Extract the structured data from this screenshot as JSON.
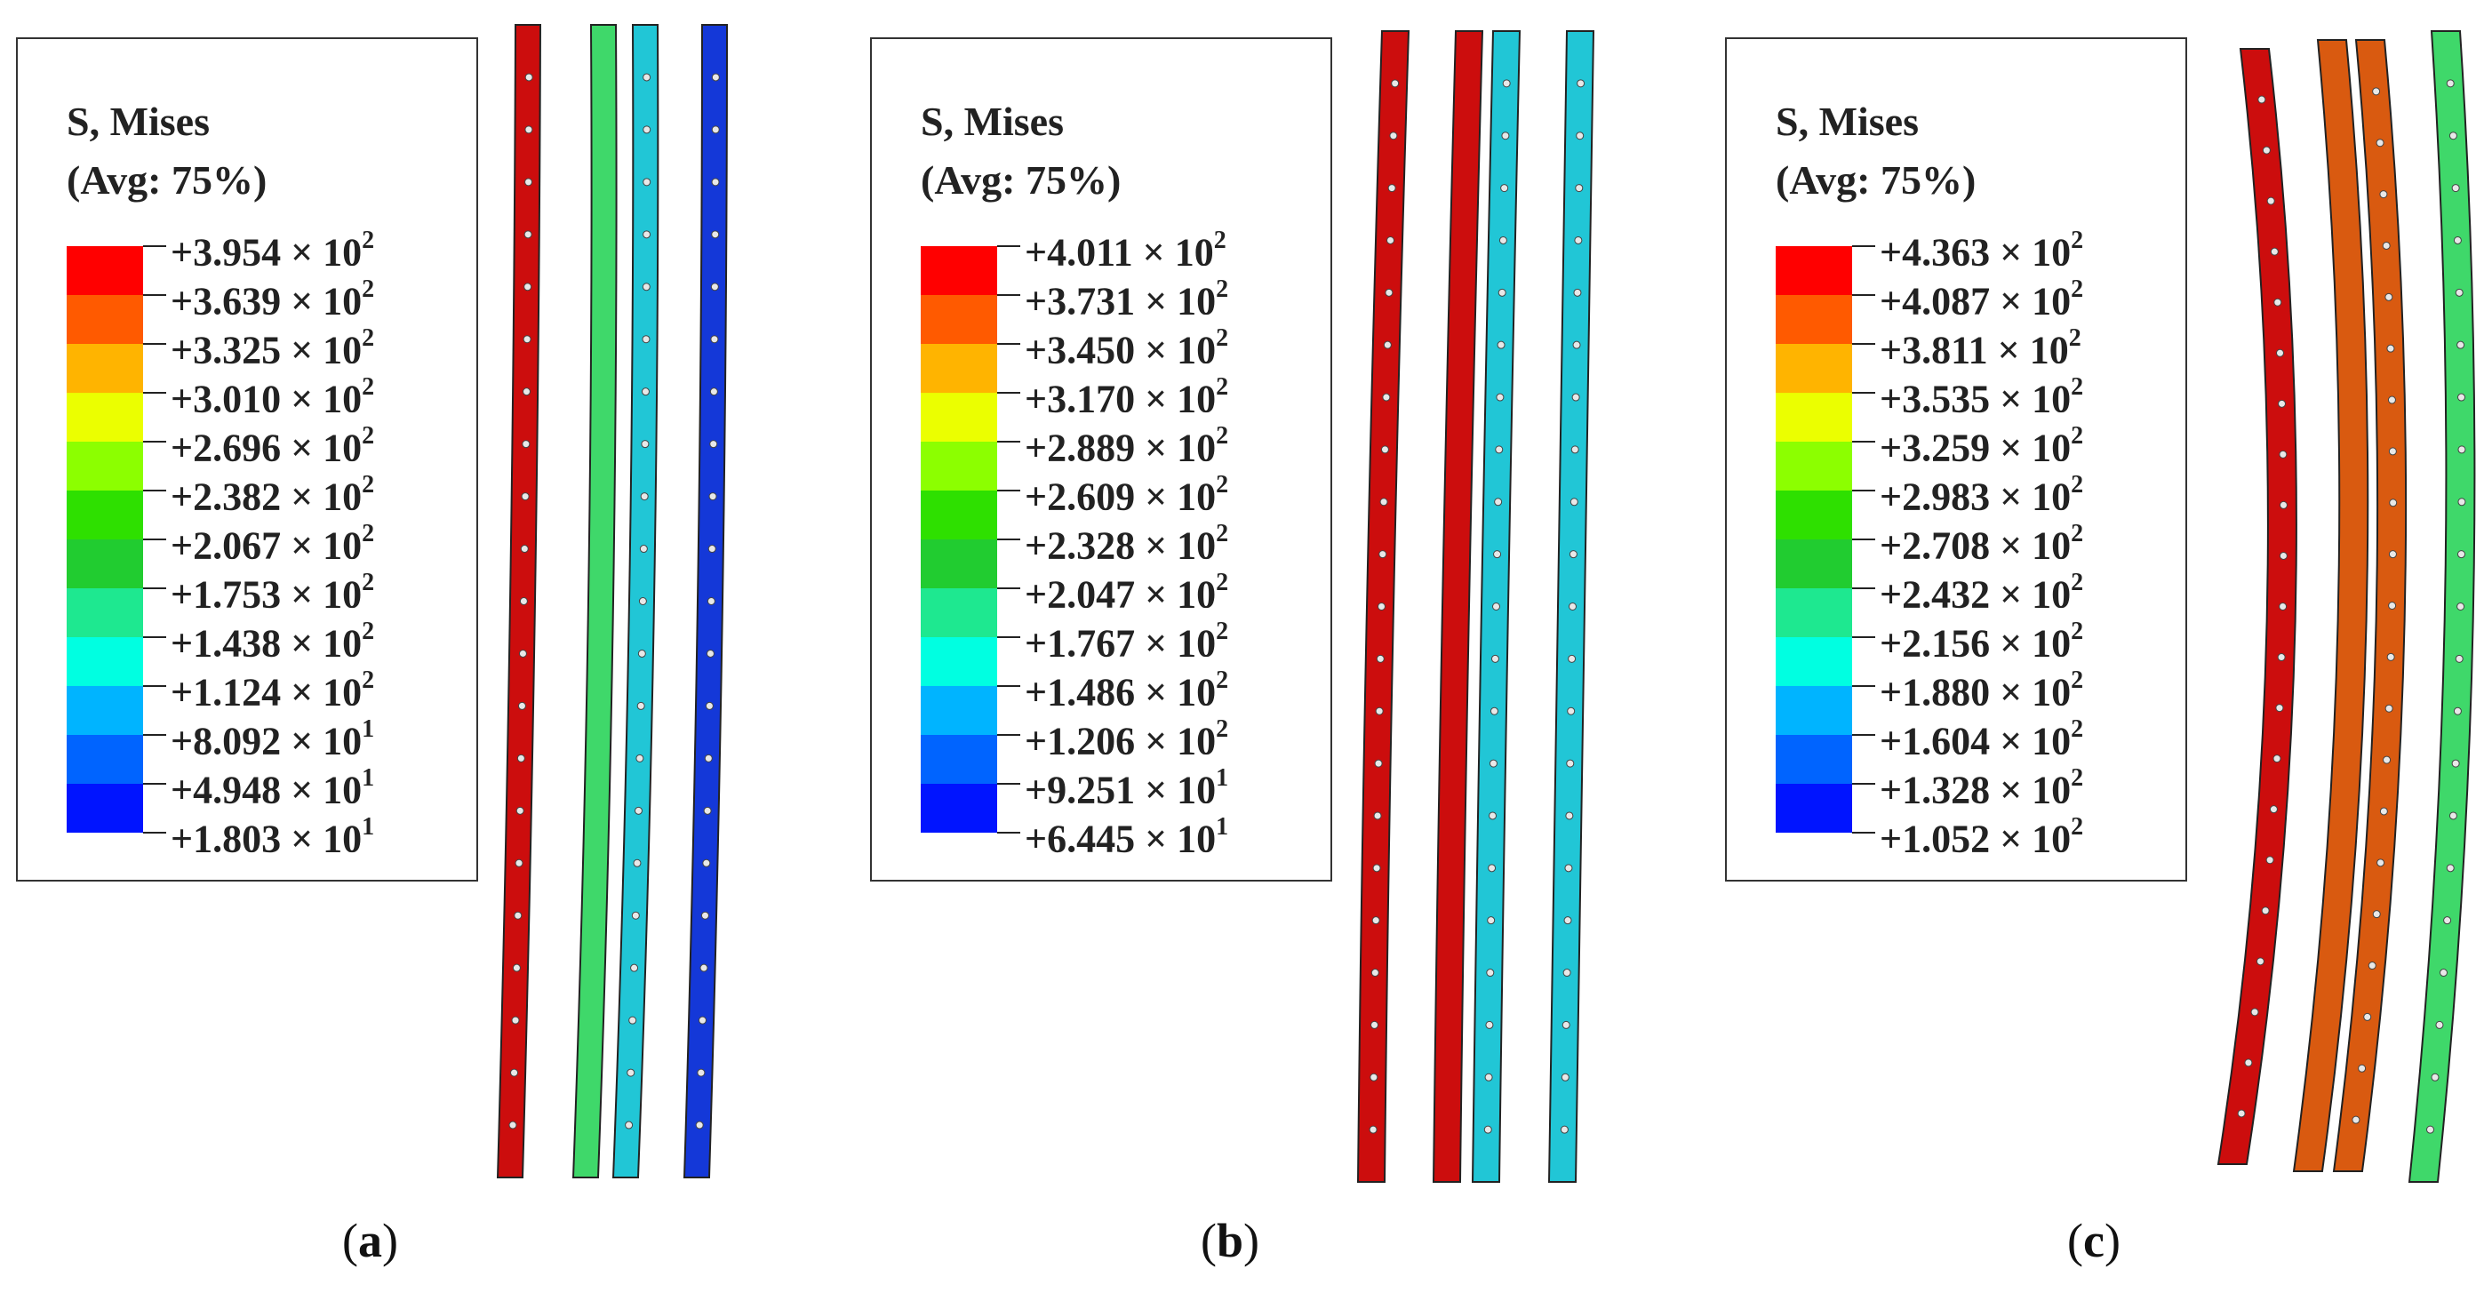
{
  "panels": [
    {
      "caption_letter": "a",
      "legend_title_line1": "S, Mises",
      "legend_title_line2": "(Avg: 75%)",
      "values": [
        "+3.954 × 10",
        "+3.639 × 10",
        "+3.325 × 10",
        "+3.010 × 10",
        "+2.696 × 10",
        "+2.382 × 10",
        "+2.067 × 10",
        "+1.753 × 10",
        "+1.438 × 10",
        "+1.124 × 10",
        "+8.092 × 10",
        "+4.948 × 10",
        "+1.803 × 10"
      ],
      "exponents": [
        "2",
        "2",
        "2",
        "2",
        "2",
        "2",
        "2",
        "2",
        "2",
        "2",
        "1",
        "1",
        "1"
      ]
    },
    {
      "caption_letter": "b",
      "legend_title_line1": "S, Mises",
      "legend_title_line2": "(Avg: 75%)",
      "values": [
        "+4.011 × 10",
        "+3.731 × 10",
        "+3.450 × 10",
        "+3.170 × 10",
        "+2.889 × 10",
        "+2.609 × 10",
        "+2.328 × 10",
        "+2.047 × 10",
        "+1.767 × 10",
        "+1.486 × 10",
        "+1.206 × 10",
        "+9.251 × 10",
        "+6.445 × 10"
      ],
      "exponents": [
        "2",
        "2",
        "2",
        "2",
        "2",
        "2",
        "2",
        "2",
        "2",
        "2",
        "2",
        "1",
        "1"
      ]
    },
    {
      "caption_letter": "c",
      "legend_title_line1": "S, Mises",
      "legend_title_line2": "(Avg: 75%)",
      "values": [
        "+4.363 × 10",
        "+4.087 × 10",
        "+3.811 × 10",
        "+3.535 × 10",
        "+3.259 × 10",
        "+2.983 × 10",
        "+2.708 × 10",
        "+2.432 × 10",
        "+2.156 × 10",
        "+1.880 × 10",
        "+1.604 × 10",
        "+1.328 × 10",
        "+1.052 × 10"
      ],
      "exponents": [
        "2",
        "2",
        "2",
        "2",
        "2",
        "2",
        "2",
        "2",
        "2",
        "2",
        "2",
        "2",
        "2"
      ]
    }
  ],
  "colors": {
    "scale": [
      "#ff0000",
      "#ff5a00",
      "#ffb400",
      "#ebff00",
      "#8cff00",
      "#2ee000",
      "#21cc30",
      "#1ee890",
      "#00ffe1",
      "#00b4ff",
      "#0064ff",
      "#0014ff"
    ],
    "red": "#cc0d0d",
    "orange": "#d95a10",
    "green": "#3fd86a",
    "cyan": "#21c6d6",
    "blue": "#1438d8"
  }
}
